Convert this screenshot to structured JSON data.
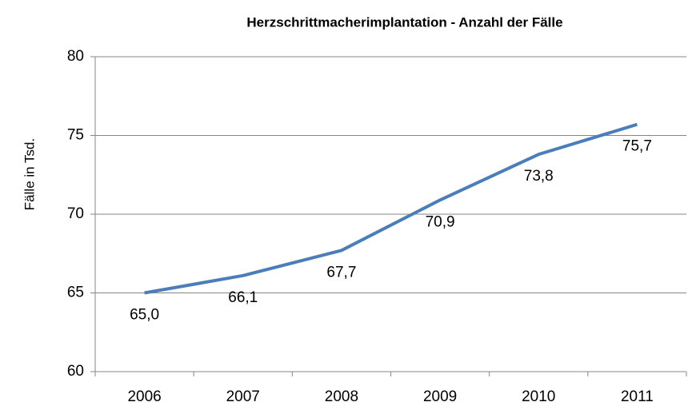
{
  "chart_data": {
    "type": "line",
    "title": "Herzschrittmacherimplantation - Anzahl der Fälle",
    "y_label": "Fälle in Tsd.",
    "categories": [
      "2006",
      "2007",
      "2008",
      "2009",
      "2010",
      "2011"
    ],
    "series": [
      {
        "name": "Fälle",
        "color": "#4a7ebb",
        "values": [
          65.0,
          66.1,
          67.7,
          70.9,
          73.8,
          75.7
        ],
        "value_labels": [
          "65,0",
          "66,1",
          "67,7",
          "70,9",
          "73,8",
          "75,7"
        ]
      }
    ],
    "ylim": [
      60,
      80
    ],
    "yticks": [
      60,
      65,
      70,
      75,
      80
    ],
    "grid": true
  }
}
